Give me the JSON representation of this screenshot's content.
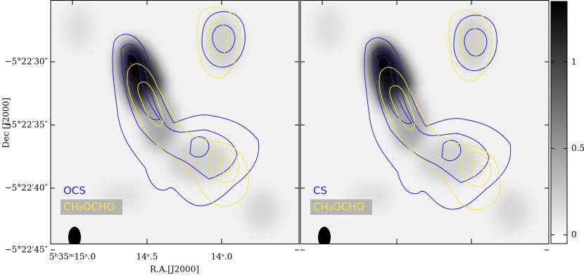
{
  "panels": [
    {
      "line1": "OCS",
      "line2": "CH₃OCHO"
    },
    {
      "line1": "CS",
      "line2": "CH₃OCHO"
    }
  ],
  "y_axis": {
    "title": "Dec [J2000]",
    "tick_labels": [
      "−5°22′30″",
      "−5°22′35″",
      "−5°22′40″",
      "−5°22′45″"
    ]
  },
  "x_axis": {
    "title": "R.A.[J2000]",
    "tick_labels": [
      "5ʰ35ᵐ15ˢ.0",
      "14ˢ.5",
      "14ˢ.0"
    ]
  },
  "colorbar": {
    "ylim": [
      -0.05,
      1.35
    ],
    "yticks": [
      0,
      0.5,
      1
    ]
  }
}
